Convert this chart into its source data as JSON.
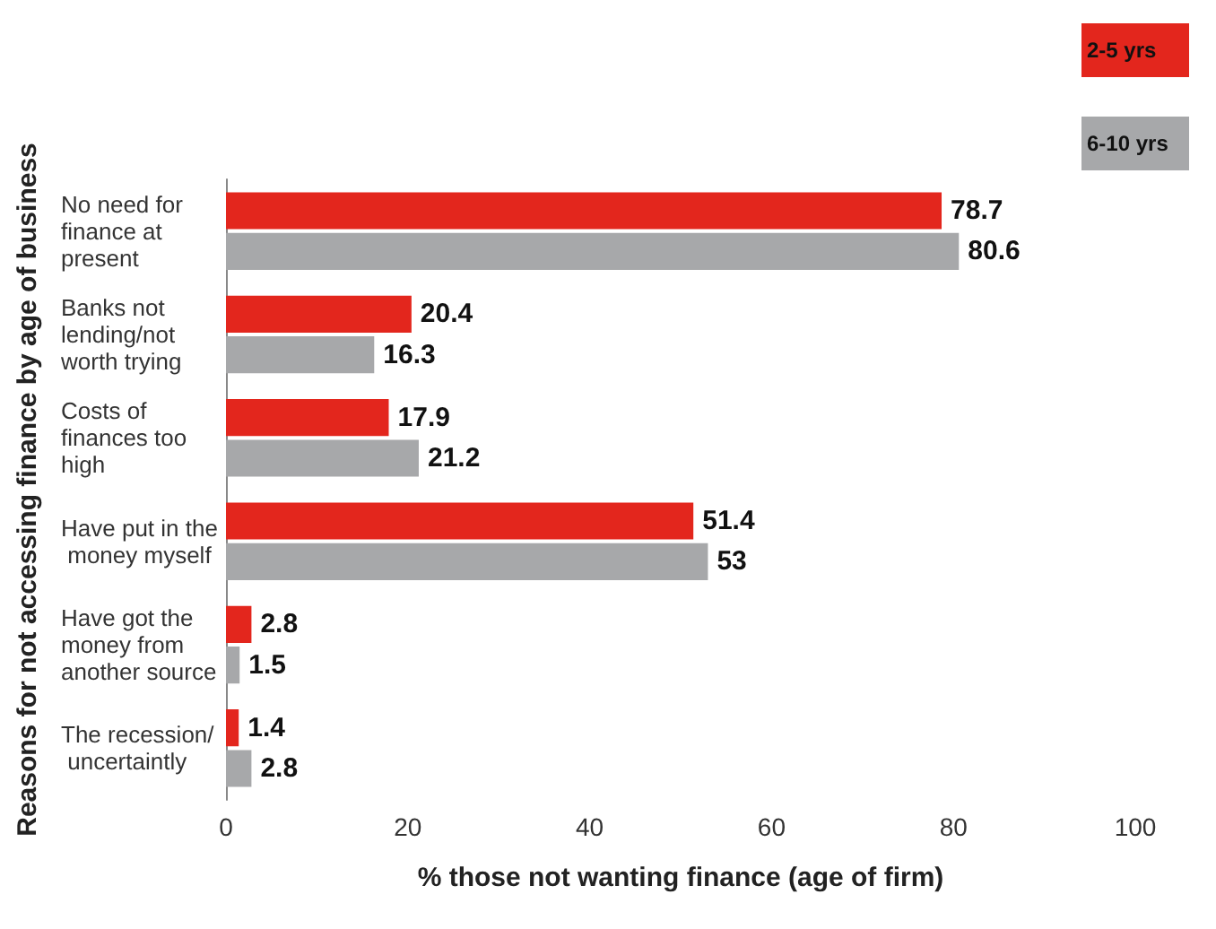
{
  "chart_data": {
    "type": "bar",
    "orientation": "horizontal",
    "xlabel": "% those not wanting finance (age of firm)",
    "ylabel": "Reasons for not accessing finance by age of business",
    "categories": [
      "No need for finance at present",
      "Banks not lending/not worth trying",
      "Costs of finances too high",
      "Have put in the money myself",
      "Have got the money from another source",
      "The recession/ uncertaintly"
    ],
    "series": [
      {
        "name": "2-5 yrs",
        "color": "#e3261d",
        "values": [
          78.7,
          20.4,
          17.9,
          51.4,
          2.8,
          1.4
        ]
      },
      {
        "name": "6-10 yrs",
        "color": "#a7a8aa",
        "values": [
          80.6,
          16.3,
          21.2,
          53,
          1.5,
          2.8
        ]
      }
    ],
    "xlim": [
      0,
      100
    ],
    "xticks": [
      0,
      20,
      40,
      60,
      80,
      100
    ],
    "grid": false,
    "legend": "top right",
    "data_labels": true
  }
}
